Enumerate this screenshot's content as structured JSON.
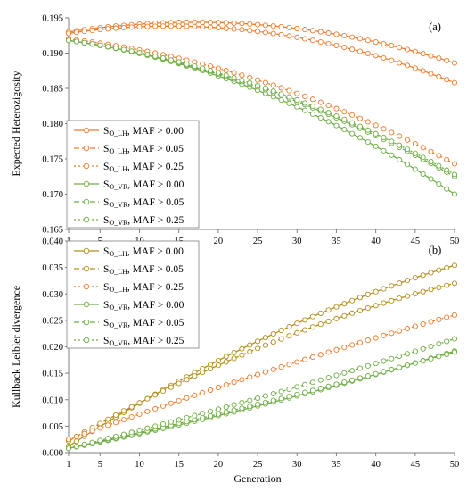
{
  "figure": {
    "xlabel": "Generation"
  },
  "chart_data": [
    {
      "type": "line",
      "panel_label": "(a)",
      "ylabel": "Expected Heterozigosity",
      "ylim": [
        0.165,
        0.195
      ],
      "yticks": [
        "0.165",
        "0.170",
        "0.175",
        "0.180",
        "0.185",
        "0.190",
        "0.195"
      ],
      "xlim": [
        1,
        50
      ],
      "xticks": [
        "1",
        "5",
        "10",
        "15",
        "20",
        "25",
        "30",
        "35",
        "40",
        "45",
        "50"
      ],
      "legend_position": "lower-left",
      "series": [
        {
          "name": "S",
          "sub": "O_LH",
          "maf": ", MAF > 0.00",
          "color": "#ED7D31",
          "dash": "solid",
          "start": 0.193,
          "mid": 0.194,
          "end": 0.1886
        },
        {
          "name": "S",
          "sub": "O_LH",
          "maf": ", MAF > 0.05",
          "color": "#ED7D31",
          "dash": "dashed",
          "start": 0.1928,
          "mid": 0.193,
          "end": 0.1858
        },
        {
          "name": "S",
          "sub": "O_LH",
          "maf": ", MAF > 0.25",
          "color": "#ED7D31",
          "dash": "dotted",
          "start": 0.192,
          "mid": 0.186,
          "end": 0.1743
        },
        {
          "name": "S",
          "sub": "O_VR",
          "maf": ", MAF > 0.00",
          "color": "#70AD47",
          "dash": "solid",
          "start": 0.1918,
          "mid": 0.1845,
          "end": 0.17
        },
        {
          "name": "S",
          "sub": "O_VR",
          "maf": ", MAF > 0.05",
          "color": "#70AD47",
          "dash": "dashed",
          "start": 0.1918,
          "mid": 0.185,
          "end": 0.1725
        },
        {
          "name": "S",
          "sub": "O_VR",
          "maf": ", MAF > 0.25",
          "color": "#70AD47",
          "dash": "dotted",
          "start": 0.1918,
          "mid": 0.1852,
          "end": 0.1728
        }
      ]
    },
    {
      "type": "line",
      "panel_label": "(b)",
      "ylabel": "Kullback Leibler divergence",
      "ylim": [
        0.0,
        0.04
      ],
      "yticks": [
        "0.000",
        "0.005",
        "0.010",
        "0.015",
        "0.020",
        "0.025",
        "0.030",
        "0.035",
        "0.040"
      ],
      "xlim": [
        1,
        50
      ],
      "xticks": [
        "1",
        "5",
        "10",
        "15",
        "20",
        "25",
        "30",
        "35",
        "40",
        "45",
        "50"
      ],
      "legend_position": "top-left",
      "series": [
        {
          "name": "S",
          "sub": "O_LH",
          "maf": ", MAF > 0.00",
          "color": "#B38E1F",
          "dash": "solid",
          "start": 0.0012,
          "mid": 0.0214,
          "end": 0.0354
        },
        {
          "name": "S",
          "sub": "O_LH",
          "maf": ", MAF > 0.05",
          "color": "#B38E1F",
          "dash": "dashed",
          "start": 0.0022,
          "mid": 0.02,
          "end": 0.032
        },
        {
          "name": "S",
          "sub": "O_LH",
          "maf": ", MAF > 0.25",
          "color": "#ED7D31",
          "dash": "dotted",
          "start": 0.0025,
          "mid": 0.015,
          "end": 0.026
        },
        {
          "name": "S",
          "sub": "O_VR",
          "maf": ", MAF > 0.00",
          "color": "#70AD47",
          "dash": "solid",
          "start": 0.0008,
          "mid": 0.009,
          "end": 0.0192
        },
        {
          "name": "S",
          "sub": "O_VR",
          "maf": ", MAF > 0.05",
          "color": "#70AD47",
          "dash": "dashed",
          "start": 0.0008,
          "mid": 0.0093,
          "end": 0.019
        },
        {
          "name": "S",
          "sub": "O_VR",
          "maf": ", MAF > 0.25",
          "color": "#70AD47",
          "dash": "dotted",
          "start": 0.0008,
          "mid": 0.0105,
          "end": 0.0215
        }
      ]
    }
  ]
}
